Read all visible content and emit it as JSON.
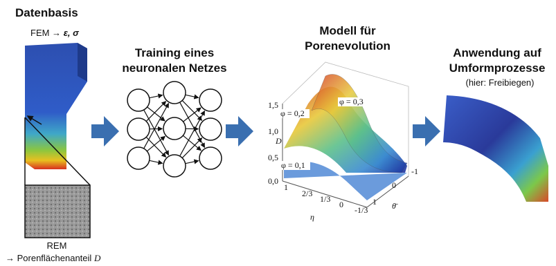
{
  "sections": [
    {
      "title": "Datenbasis",
      "fem_label": "FEM →",
      "fem_vars": "ε, σ",
      "rem_label": "REM",
      "rem_caption": "→ Porenflächenanteil",
      "rem_symbol": "D"
    },
    {
      "title_lines": [
        "Training eines",
        "neuronalen Netzes"
      ]
    },
    {
      "title_lines": [
        "Modell für",
        "Porenevolution"
      ],
      "plot": {
        "z_label": "D",
        "z_ticks": [
          "0,0",
          "0,5",
          "1,0",
          "1,5"
        ],
        "eta_label": "η",
        "eta_ticks": [
          "1",
          "2/3",
          "1/3",
          "0",
          "-1/3"
        ],
        "theta_label": "θ̄",
        "theta_ticks": [
          "-1",
          "0",
          "1"
        ],
        "curve_labels": [
          "φ = 0,1",
          "φ = 0,2",
          "φ = 0,3"
        ]
      }
    },
    {
      "title_lines": [
        "Anwendung auf",
        "Umformprozesse"
      ],
      "subtitle": "(hier: Freibiegen)"
    }
  ]
}
